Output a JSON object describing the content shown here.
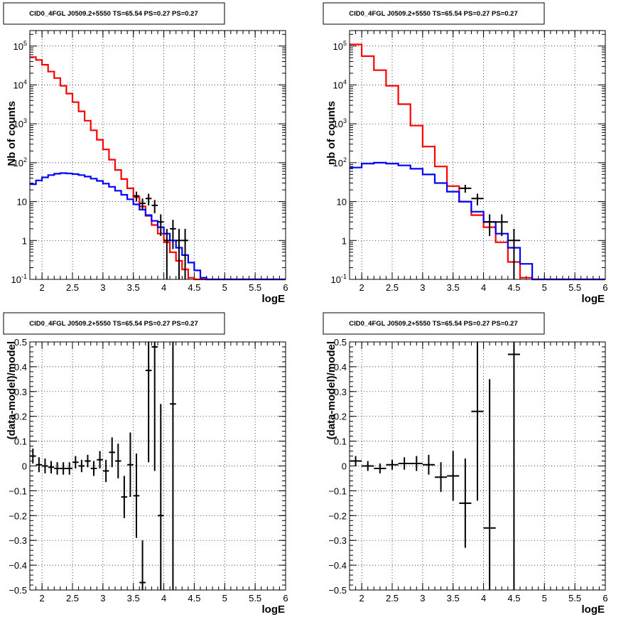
{
  "colors": {
    "model": "#ff0000",
    "model_stroke": "#e01010",
    "background_model": "#0000ff",
    "data": "#000000"
  },
  "panels": [
    {
      "title": "CID0_4FGL J0509.2+5550 TS=65.54 PS=0.27 PS=0.27",
      "xlabel": "logE",
      "ylabel": "Nb of counts"
    },
    {
      "title": "CID0_4FGL J0509.2+5550 TS=65.54 PS=0.27 PS=0.27",
      "xlabel": "logE",
      "ylabel": "nb of counts"
    },
    {
      "title": "CID0_4FGL J0509.2+5550 TS=65.54 PS=0.27 PS=0.27",
      "xlabel": "logE",
      "ylabel": "(data-model)/model"
    },
    {
      "title": "CID0_4FGL J0509.2+5550 TS=65.54 PS=0.27 PS=0.27",
      "xlabel": "logE",
      "ylabel": "(data-model)/model"
    }
  ],
  "chart_data": [
    {
      "type": "line",
      "title": "CID0_4FGL J0509.2+5550 TS=65.54 PS=0.27 PS=0.27",
      "xlabel": "logE",
      "ylabel": "Nb of counts",
      "y_scale": "log",
      "xlim": [
        1.8,
        6.0
      ],
      "ylim": [
        0.1,
        250000
      ],
      "xticks": [
        "2",
        "2.5",
        "3",
        "3.5",
        "4",
        "4.5",
        "5",
        "5.5",
        "6"
      ],
      "yticks": [
        "10^-1",
        "1",
        "10",
        "10^2",
        "10^3",
        "10^4",
        "10^5"
      ],
      "grid": true,
      "bin_edges": [
        1.8,
        1.9,
        2.0,
        2.1,
        2.2,
        2.3,
        2.4,
        2.5,
        2.6,
        2.7,
        2.8,
        2.9,
        3.0,
        3.1,
        3.2,
        3.3,
        3.4,
        3.5,
        3.6,
        3.7,
        3.8,
        3.9,
        4.0,
        4.1,
        4.2,
        4.3,
        4.4,
        4.5,
        4.6,
        4.7,
        4.8,
        4.9,
        5.0,
        5.1,
        5.2,
        5.3,
        5.4,
        5.5,
        5.6,
        5.7,
        5.8,
        5.9,
        6.0
      ],
      "series": [
        {
          "name": "model",
          "color": "#ff0000",
          "values": [
            52000,
            44000,
            33000,
            22000,
            15000,
            9500,
            6000,
            3600,
            2100,
            1200,
            680,
            390,
            220,
            120,
            65,
            38,
            22,
            13,
            7.5,
            4.3,
            2.5,
            1.5,
            0.9,
            0.5,
            0.3,
            0.18,
            0.11,
            0.1,
            0.1,
            0.1,
            0.1,
            0.1,
            0.1,
            0.1,
            0.1,
            0.1,
            0.1,
            0.1,
            0.1,
            0.1,
            0.1,
            0.1
          ]
        },
        {
          "name": "background",
          "color": "#0000ff",
          "values": [
            28,
            35,
            42,
            48,
            52,
            54,
            53,
            51,
            48,
            44,
            39,
            34,
            29,
            24,
            19,
            15,
            11.5,
            8.5,
            6.2,
            4.5,
            3.2,
            2.2,
            1.5,
            1.0,
            0.65,
            0.42,
            0.27,
            0.17,
            0.11,
            0.1,
            0.1,
            0.1,
            0.1,
            0.1,
            0.1,
            0.1,
            0.1,
            0.1,
            0.1,
            0.1,
            0.1,
            0.1
          ]
        }
      ],
      "data_points": [
        {
          "x": 3.55,
          "y": 14,
          "err": 4
        },
        {
          "x": 3.65,
          "y": 9,
          "err": 3
        },
        {
          "x": 3.75,
          "y": 12,
          "err": 4
        },
        {
          "x": 3.85,
          "y": 8,
          "err": 3
        },
        {
          "x": 3.95,
          "y": 3,
          "err": 1.7
        },
        {
          "x": 4.05,
          "y": 1,
          "err": 0.99
        },
        {
          "x": 4.15,
          "y": 2,
          "err": 1.4
        },
        {
          "x": 4.25,
          "y": 1,
          "err": 0.99
        },
        {
          "x": 4.35,
          "y": 1,
          "err": 0.99
        }
      ]
    },
    {
      "type": "line",
      "title": "CID0_4FGL J0509.2+5550 TS=65.54 PS=0.27 PS=0.27",
      "xlabel": "logE",
      "ylabel": "nb of counts",
      "y_scale": "log",
      "xlim": [
        1.8,
        6.0
      ],
      "ylim": [
        0.1,
        250000
      ],
      "xticks": [
        "2",
        "2.5",
        "3",
        "3.5",
        "4",
        "4.5",
        "5",
        "5.5",
        "6"
      ],
      "yticks": [
        "10^-1",
        "1",
        "10",
        "10^2",
        "10^3",
        "10^4",
        "10^5"
      ],
      "grid": true,
      "bin_edges": [
        1.8,
        2.0,
        2.2,
        2.4,
        2.6,
        2.8,
        3.0,
        3.2,
        3.4,
        3.6,
        3.8,
        4.0,
        4.2,
        4.4,
        4.6,
        4.8,
        5.0,
        5.2,
        5.4,
        5.6,
        5.8,
        6.0
      ],
      "series": [
        {
          "name": "model",
          "color": "#ff0000",
          "values": [
            110000,
            55000,
            24000,
            9500,
            3200,
            900,
            260,
            80,
            25,
            10,
            4.5,
            2.2,
            0.9,
            0.28,
            0.11,
            0.1,
            0.1,
            0.1,
            0.1,
            0.1,
            0.1
          ]
        },
        {
          "name": "background",
          "color": "#0000ff",
          "values": [
            75,
            95,
            100,
            95,
            85,
            70,
            50,
            30,
            18,
            10,
            5.5,
            3,
            1.5,
            0.65,
            0.25,
            0.1,
            0.1,
            0.1,
            0.1,
            0.1,
            0.1
          ]
        }
      ],
      "data_points": [
        {
          "x": 3.7,
          "y": 22,
          "err": 5
        },
        {
          "x": 3.9,
          "y": 12,
          "err": 4
        },
        {
          "x": 4.1,
          "y": 3,
          "err": 1.7
        },
        {
          "x": 4.3,
          "y": 3,
          "err": 1.7
        },
        {
          "x": 4.5,
          "y": 1,
          "err": 0.99
        }
      ]
    },
    {
      "type": "scatter",
      "title": "CID0_4FGL J0509.2+5550 TS=65.54 PS=0.27 PS=0.27",
      "xlabel": "logE",
      "ylabel": "(data-model)/model",
      "xlim": [
        1.8,
        6.0
      ],
      "ylim": [
        -0.5,
        0.5
      ],
      "xticks": [
        "2",
        "2.5",
        "3",
        "3.5",
        "4",
        "4.5",
        "5",
        "5.5",
        "6"
      ],
      "yticks": [
        "-0.5",
        "-0.4",
        "-0.3",
        "-0.2",
        "-0.1",
        "0",
        "0.1",
        "0.2",
        "0.3",
        "0.4",
        "0.5"
      ],
      "grid": true,
      "points": [
        {
          "x": 1.85,
          "y": 0.04,
          "xerr": 0.05,
          "yerr": 0.03
        },
        {
          "x": 1.95,
          "y": 0.005,
          "xerr": 0.05,
          "yerr": 0.03
        },
        {
          "x": 2.05,
          "y": 0.0,
          "xerr": 0.05,
          "yerr": 0.03
        },
        {
          "x": 2.15,
          "y": -0.005,
          "xerr": 0.05,
          "yerr": 0.025
        },
        {
          "x": 2.25,
          "y": -0.01,
          "xerr": 0.05,
          "yerr": 0.025
        },
        {
          "x": 2.35,
          "y": -0.01,
          "xerr": 0.05,
          "yerr": 0.025
        },
        {
          "x": 2.45,
          "y": -0.01,
          "xerr": 0.05,
          "yerr": 0.025
        },
        {
          "x": 2.55,
          "y": 0.015,
          "xerr": 0.05,
          "yerr": 0.025
        },
        {
          "x": 2.65,
          "y": 0.0,
          "xerr": 0.05,
          "yerr": 0.025
        },
        {
          "x": 2.75,
          "y": 0.02,
          "xerr": 0.05,
          "yerr": 0.025
        },
        {
          "x": 2.85,
          "y": -0.01,
          "xerr": 0.05,
          "yerr": 0.03
        },
        {
          "x": 2.95,
          "y": 0.025,
          "xerr": 0.05,
          "yerr": 0.035
        },
        {
          "x": 3.05,
          "y": -0.02,
          "xerr": 0.05,
          "yerr": 0.045
        },
        {
          "x": 3.15,
          "y": 0.055,
          "xerr": 0.05,
          "yerr": 0.06
        },
        {
          "x": 3.25,
          "y": 0.02,
          "xerr": 0.05,
          "yerr": 0.07
        },
        {
          "x": 3.35,
          "y": -0.125,
          "xerr": 0.05,
          "yerr": 0.085
        },
        {
          "x": 3.45,
          "y": 0.005,
          "xerr": 0.05,
          "yerr": 0.13
        },
        {
          "x": 3.55,
          "y": -0.12,
          "xerr": 0.05,
          "yerr": 0.17
        },
        {
          "x": 3.65,
          "y": -0.47,
          "xerr": 0.05,
          "yerr": 0.17
        },
        {
          "x": 3.75,
          "y": 0.385,
          "xerr": 0.05,
          "yerr": 0.37
        },
        {
          "x": 3.85,
          "y": 0.48,
          "xerr": 0.05,
          "yerr": 0.5
        },
        {
          "x": 3.95,
          "y": -0.2,
          "xerr": 0.05,
          "yerr": 0.45
        },
        {
          "x": 4.15,
          "y": 0.25,
          "xerr": 0.05,
          "yerr": 0.8
        }
      ]
    },
    {
      "type": "scatter",
      "title": "CID0_4FGL J0509.2+5550 TS=65.54 PS=0.27 PS=0.27",
      "xlabel": "logE",
      "ylabel": "(data-model)/model",
      "xlim": [
        1.8,
        6.0
      ],
      "ylim": [
        -0.5,
        0.5
      ],
      "xticks": [
        "2",
        "2.5",
        "3",
        "3.5",
        "4",
        "4.5",
        "5",
        "5.5",
        "6"
      ],
      "yticks": [
        "-0.5",
        "-0.4",
        "-0.3",
        "-0.2",
        "-0.1",
        "0",
        "0.1",
        "0.2",
        "0.3",
        "0.4",
        "0.5"
      ],
      "grid": true,
      "points": [
        {
          "x": 1.9,
          "y": 0.02,
          "xerr": 0.1,
          "yerr": 0.02
        },
        {
          "x": 2.1,
          "y": 0.0,
          "xerr": 0.1,
          "yerr": 0.02
        },
        {
          "x": 2.3,
          "y": -0.01,
          "xerr": 0.1,
          "yerr": 0.02
        },
        {
          "x": 2.5,
          "y": 0.005,
          "xerr": 0.1,
          "yerr": 0.02
        },
        {
          "x": 2.7,
          "y": 0.01,
          "xerr": 0.1,
          "yerr": 0.025
        },
        {
          "x": 2.9,
          "y": 0.01,
          "xerr": 0.1,
          "yerr": 0.03
        },
        {
          "x": 3.1,
          "y": 0.005,
          "xerr": 0.1,
          "yerr": 0.04
        },
        {
          "x": 3.3,
          "y": -0.045,
          "xerr": 0.1,
          "yerr": 0.06
        },
        {
          "x": 3.5,
          "y": -0.04,
          "xerr": 0.1,
          "yerr": 0.1
        },
        {
          "x": 3.7,
          "y": -0.15,
          "xerr": 0.1,
          "yerr": 0.18
        },
        {
          "x": 3.9,
          "y": 0.22,
          "xerr": 0.1,
          "yerr": 0.36
        },
        {
          "x": 4.1,
          "y": -0.25,
          "xerr": 0.1,
          "yerr": 0.6
        },
        {
          "x": 4.5,
          "y": 0.45,
          "xerr": 0.1,
          "yerr": 1.0
        }
      ]
    }
  ]
}
